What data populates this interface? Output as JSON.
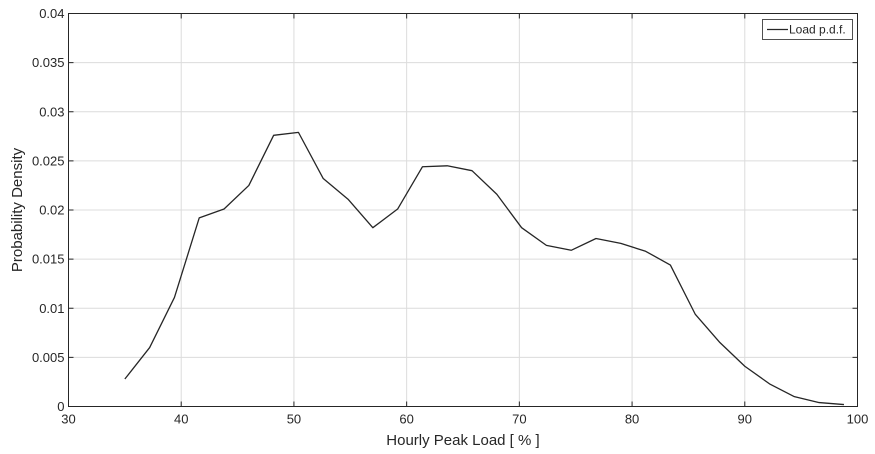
{
  "chart_data": {
    "type": "line",
    "title": "",
    "xlabel": "Hourly Peak Load [ % ]",
    "ylabel": "Probability Density",
    "xlim": [
      30,
      100
    ],
    "ylim": [
      0,
      0.04
    ],
    "xticks": [
      30,
      40,
      50,
      60,
      70,
      80,
      90,
      100
    ],
    "yticks": [
      0,
      0.005,
      0.01,
      0.015,
      0.02,
      0.025,
      0.03,
      0.035,
      0.04
    ],
    "xtick_labels": [
      "30",
      "40",
      "50",
      "60",
      "70",
      "80",
      "90",
      "100"
    ],
    "ytick_labels": [
      "0",
      "0.005",
      "0.01",
      "0.015",
      "0.02",
      "0.025",
      "0.03",
      "0.035",
      "0.04"
    ],
    "grid": true,
    "legend": {
      "position": "top-right",
      "entries": [
        "Load p.d.f."
      ]
    },
    "series": [
      {
        "name": "Load p.d.f.",
        "color": "#262626",
        "x": [
          35,
          37.2,
          39.4,
          41.6,
          43.8,
          46,
          48.2,
          50.4,
          52.6,
          54.8,
          57,
          59.2,
          61.4,
          63.6,
          65.8,
          68,
          70.2,
          72.4,
          74.6,
          76.8,
          79,
          81.2,
          83.4,
          85.6,
          87.8,
          90,
          92.2,
          94.4,
          96.6,
          98.8
        ],
        "y": [
          0.0028,
          0.006,
          0.0111,
          0.0192,
          0.0201,
          0.0225,
          0.0276,
          0.0279,
          0.0232,
          0.0211,
          0.0182,
          0.0201,
          0.0244,
          0.0245,
          0.024,
          0.0216,
          0.0182,
          0.0164,
          0.0159,
          0.0171,
          0.0166,
          0.0158,
          0.0144,
          0.0094,
          0.0065,
          0.0041,
          0.0023,
          0.001,
          0.0004,
          0.0002
        ]
      }
    ]
  }
}
